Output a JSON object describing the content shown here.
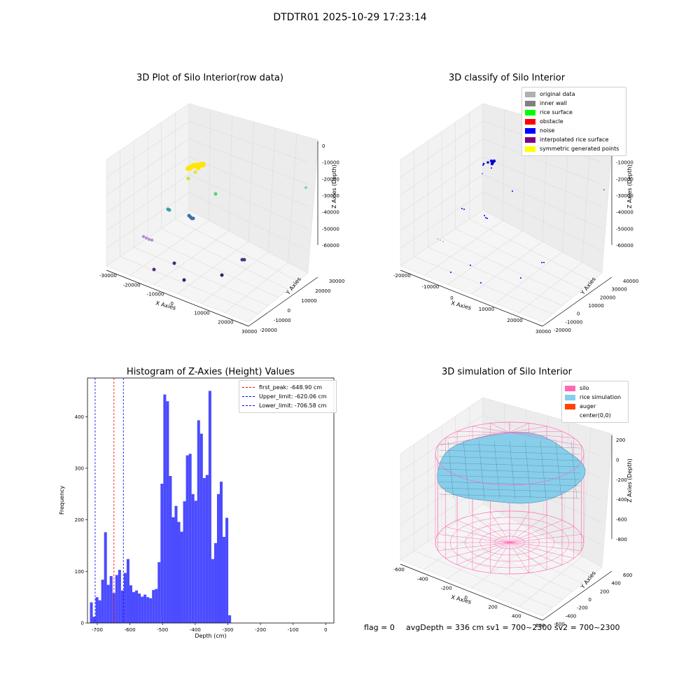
{
  "suptitle": "DTDTR01 2025-10-29 17:23:14",
  "panels": {
    "raw": {
      "title": "3D Plot of Silo Interior(row data)",
      "xlabel": "X Axies",
      "ylabel": "Y Axies",
      "zlabel": "Z Axies (Depth)",
      "x_ticks": [
        "-30000",
        "-20000",
        "-10000",
        "0",
        "10000",
        "20000",
        "30000"
      ],
      "y_ticks": [
        "-20000",
        "-10000",
        "0",
        "10000",
        "20000",
        "30000"
      ],
      "z_ticks": [
        "0",
        "-10000",
        "-20000",
        "-30000",
        "-40000",
        "-50000",
        "-60000"
      ]
    },
    "classify": {
      "title": "3D classify of Silo Interior",
      "xlabel": "X Axies",
      "ylabel": "Y Axies",
      "zlabel": "Z Axies (Depth)",
      "x_ticks": [
        "-20000",
        "-10000",
        "0",
        "10000",
        "20000",
        "30000"
      ],
      "y_ticks": [
        "-20000",
        "-10000",
        "0",
        "10000",
        "20000",
        "30000",
        "40000"
      ],
      "z_ticks": [
        "0",
        "-10000",
        "-20000",
        "-30000",
        "-40000",
        "-50000",
        "-60000"
      ],
      "legend": [
        {
          "label": "original data",
          "color": "#b0b0b0"
        },
        {
          "label": "inner wall",
          "color": "#808080"
        },
        {
          "label": "rice surface",
          "color": "#00ff00"
        },
        {
          "label": "obstacle",
          "color": "#ff0000"
        },
        {
          "label": "noise",
          "color": "#0000ff"
        },
        {
          "label": "interpolated rice surface",
          "color": "#800080"
        },
        {
          "label": "symmetric generated points",
          "color": "#ffff00"
        }
      ]
    },
    "simulation": {
      "title": "3D simulation of Silo Interior",
      "xlabel": "X Axies",
      "ylabel": "Y Axies",
      "zlabel": "Z Axies (Depth)",
      "x_ticks": [
        "-600",
        "-400",
        "-200",
        "0",
        "200",
        "400",
        "600"
      ],
      "y_ticks": [
        "-600",
        "-400",
        "-200",
        "0",
        "200",
        "400",
        "600"
      ],
      "z_ticks": [
        "200",
        "0",
        "-200",
        "-400",
        "-600",
        "-800"
      ],
      "legend": [
        {
          "label": "silo",
          "color": "#ff69b4"
        },
        {
          "label": "rice simulation",
          "color": "#87ceeb"
        },
        {
          "label": "auger",
          "color": "#ff4500"
        },
        {
          "label": "center(0,0)",
          "color": "#ffffff"
        }
      ]
    }
  },
  "footer": {
    "flag": "flag = 0",
    "stats": "avgDepth = 336 cm  sv1 = 700~2300  sv2 = 700~2300"
  },
  "chart_data": [
    {
      "type": "bar",
      "title": "Histogram of Z-Axies (Height) Values",
      "xlabel": "Depth (cm)",
      "ylabel": "Frequency",
      "xlim": [
        -730,
        25
      ],
      "ylim": [
        0,
        475
      ],
      "x_ticks": [
        -700,
        -600,
        -500,
        -400,
        -300,
        -200,
        -100,
        0
      ],
      "y_ticks": [
        0,
        100,
        200,
        300,
        400
      ],
      "bin_width": 8.65,
      "bin_start": -722.5,
      "color": "#4b4bff",
      "values": [
        40,
        12,
        50,
        44,
        84,
        176,
        74,
        91,
        58,
        93,
        103,
        63,
        97,
        124,
        73,
        60,
        63,
        57,
        51,
        55,
        50,
        48,
        64,
        66,
        118,
        270,
        443,
        430,
        285,
        205,
        227,
        196,
        177,
        236,
        325,
        328,
        250,
        237,
        393,
        367,
        281,
        287,
        450,
        124,
        155,
        250,
        274,
        167,
        204,
        15
      ],
      "vlines": [
        {
          "label": "first_peak: -648.90 cm",
          "x": -648.9,
          "color": "#ff0000"
        },
        {
          "label": "Upper_limit: -620.06 cm",
          "x": -620.06,
          "color": "#0000ff"
        },
        {
          "label": "Lower_limit: -706.58 cm",
          "x": -706.58,
          "color": "#0000ff"
        }
      ]
    }
  ]
}
